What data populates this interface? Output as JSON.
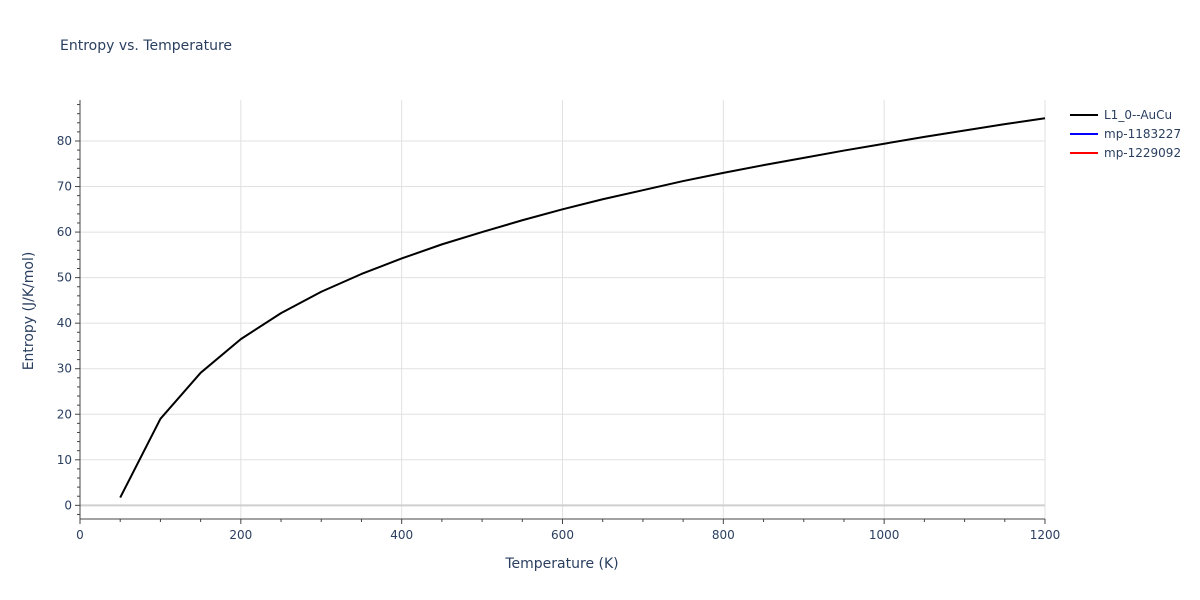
{
  "chart_data": {
    "type": "line",
    "title": "Entropy vs. Temperature",
    "xlabel": "Temperature (K)",
    "ylabel": "Entropy (J/K/mol)",
    "xlim": [
      0,
      1200
    ],
    "ylim": [
      -3,
      89
    ],
    "x_ticks": [
      0,
      200,
      400,
      600,
      800,
      1000,
      1200
    ],
    "y_ticks": [
      0,
      10,
      20,
      30,
      40,
      50,
      60,
      70,
      80
    ],
    "grid": true,
    "legend_position": "top-right",
    "series": [
      {
        "name": "L1_0--AuCu",
        "color": "#000000",
        "x": [
          50,
          100,
          150,
          200,
          250,
          300,
          350,
          400,
          450,
          500,
          550,
          600,
          650,
          700,
          750,
          800,
          850,
          900,
          950,
          1000,
          1050,
          1100,
          1150,
          1200
        ],
        "y": [
          1.7,
          19.0,
          29.1,
          36.5,
          42.2,
          46.9,
          50.8,
          54.2,
          57.3,
          60.0,
          62.6,
          65.0,
          67.2,
          69.2,
          71.2,
          73.0,
          74.7,
          76.3,
          77.9,
          79.4,
          80.9,
          82.3,
          83.7,
          85.0
        ]
      },
      {
        "name": "mp-1183227",
        "color": "#0000ff",
        "x": [],
        "y": []
      },
      {
        "name": "mp-1229092",
        "color": "#ff0000",
        "x": [],
        "y": []
      }
    ]
  }
}
